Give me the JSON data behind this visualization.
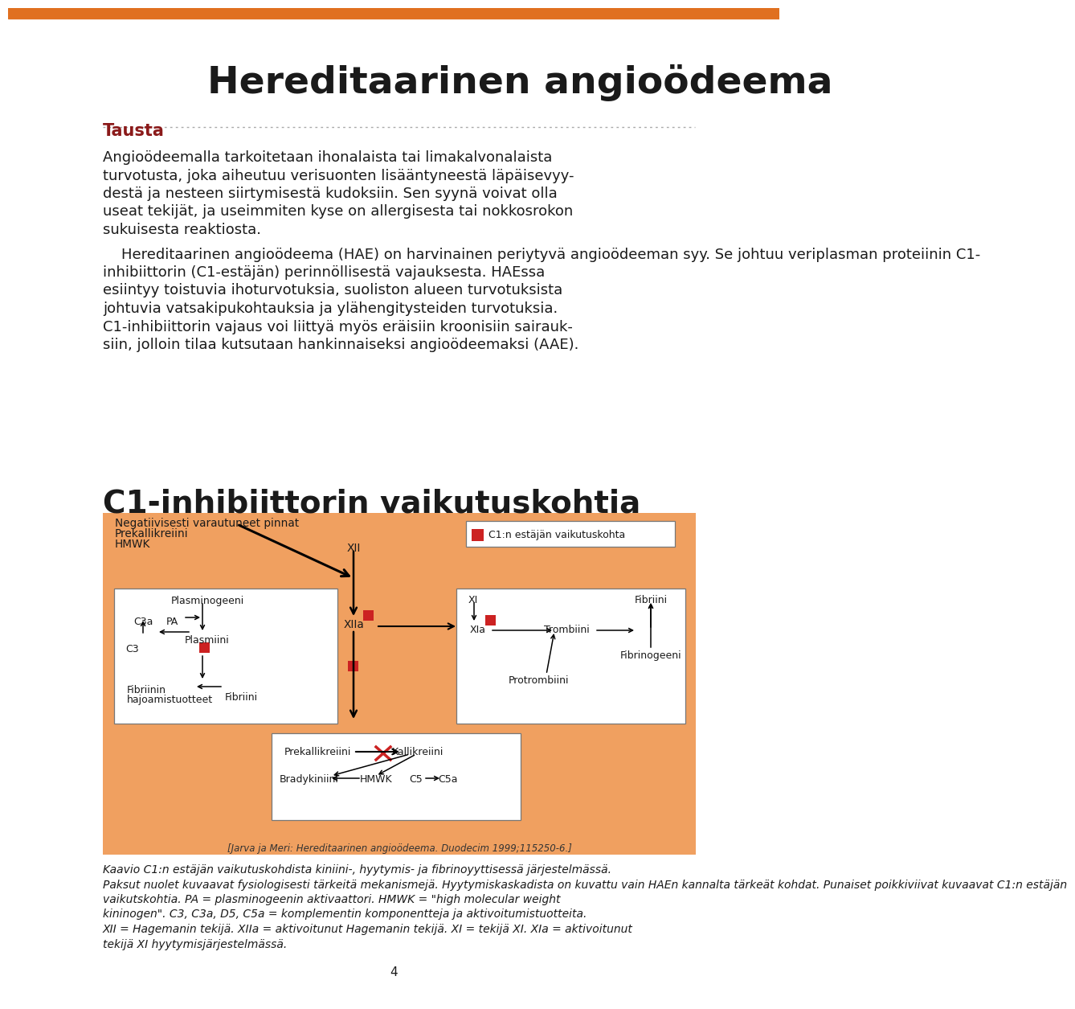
{
  "title": "Hereditaarinen angioödeema",
  "section_title": "Tausta",
  "section_title_color": "#8B1A1A",
  "orange_bar_color": "#E07020",
  "bg_color": "#FFFFFF",
  "diagram_bg": "#F0A060",
  "body_text_para1_lines": [
    "Angioödeemalla tarkoitetaan ihonalaista tai limakalvonalaista",
    "turvotusta, joka aiheutuu verisuonten lisääntyneestä läpäisevyy-",
    "destä ja nesteen siirtymisestä kudoksiin. Sen syynä voivat olla",
    "useat tekijät, ja useimmiten kyse on allergisesta tai nokkosrokon",
    "sukuisesta reaktiosta."
  ],
  "body_text_para2_lines": [
    "    Hereditaarinen angioödeema (HAE) on harvinainen periytyvä angioödeeman syy. Se johtuu veriplasman proteiinin C1-",
    "inhibiittorin (C1-estäjän) perinnöllisestä vajauksesta. HAEssa",
    "esiintyy toistuvia ihoturvotuksia, suoliston alueen turvotuksista",
    "johtuvia vatsakipukohtauksia ja ylähengitysteiden turvotuksia.",
    "C1-inhibiittorin vajaus voi liittyä myös eräisiin kroonisiin sairauk-",
    "siin, jolloin tilaa kutsutaan hankinnaiseksi angioödeemaksi (AAE)."
  ],
  "diagram_title": "C1-inhibiittorin vaikutuskohtia",
  "reference": "[Jarva ja Meri: Hereditaarinen angioödeema. Duodecim 1999;115250-6.]",
  "caption_lines": [
    "Kaavio C1:n estäjän vaikutuskohdista kiniini-, hyytymis- ja fibrinoyyttisessä järjestelmässä.",
    "Paksut nuolet kuvaavat fysiologisesti tärkeitä mekanismejä. Hyytymiskaskadista on kuvattu vain HAEn kannalta tärkeät kohdat. Punaiset poikkiviivat kuvaavat C1:n estäjän",
    "vaikutskohtia. PA = plasminogeenin aktivaattori. HMWK = \"high molecular weight",
    "kininogen\". C3, C3a, D5, C5a = komplementin komponentteja ja aktivoitumistuotteita.",
    "XII = Hagemanin tekijä. XIIa = aktivoitunut Hagemanin tekijä. XI = tekijä XI. XIa = aktivoitunut",
    "tekijä XI hyytymisjärjestelmässä."
  ],
  "page_number": "4",
  "red_color": "#CC2222"
}
